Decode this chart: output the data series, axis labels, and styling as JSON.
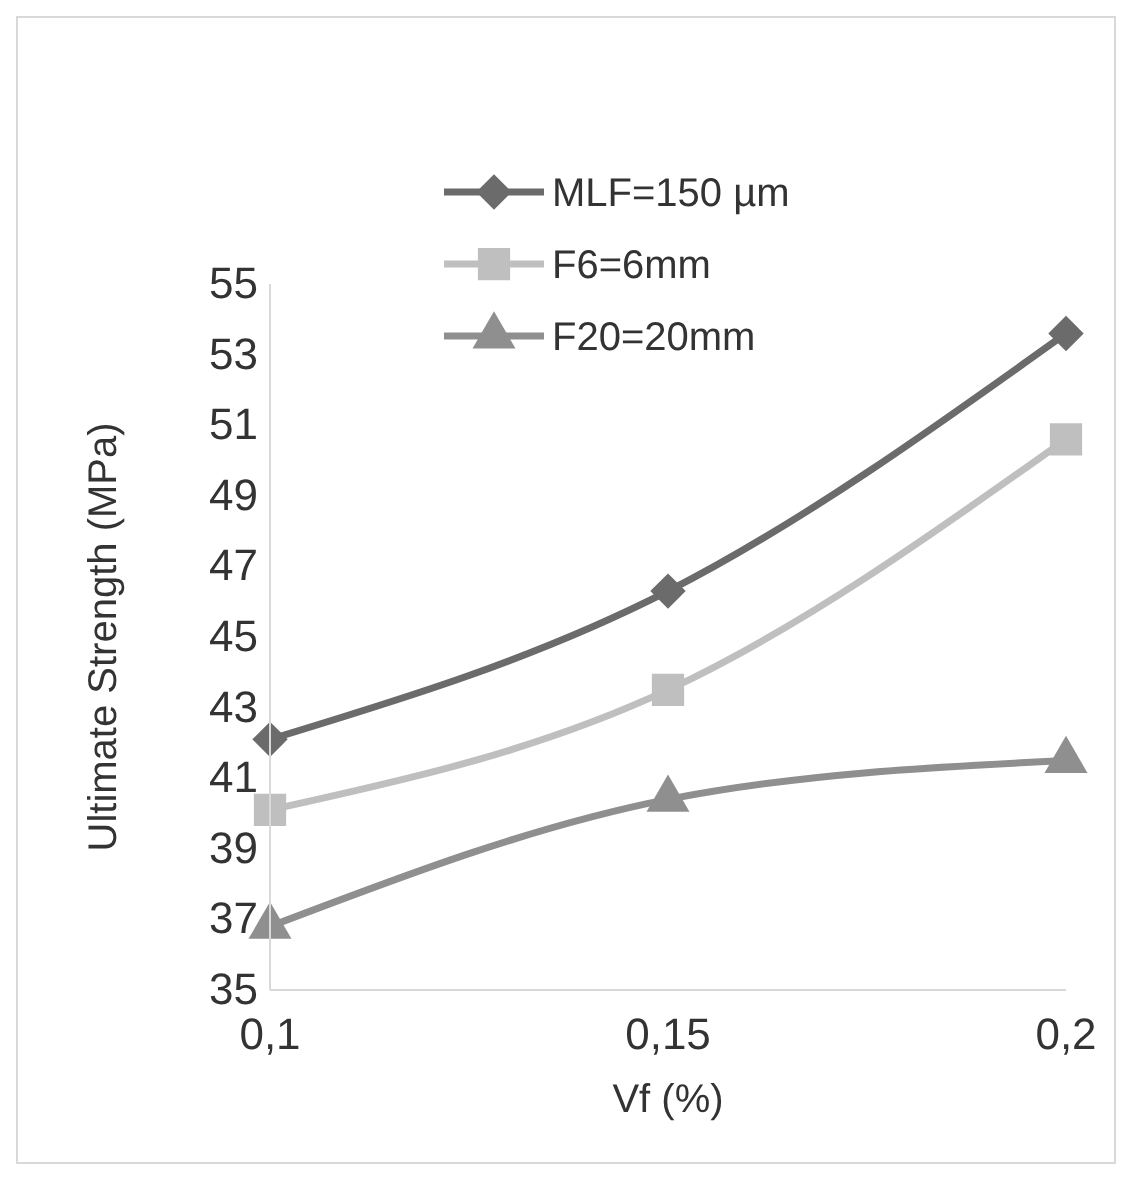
{
  "chart_data": {
    "type": "line",
    "xlabel": "Vf (%)",
    "ylabel": "Ultimate Strength (MPa)",
    "categories": [
      "0,1",
      "0,15",
      "0,2"
    ],
    "series": [
      {
        "name": "MLF=150 µm",
        "color": "#6b6b6b",
        "marker": "diamond",
        "values": [
          42.1,
          46.3,
          53.6
        ]
      },
      {
        "name": "F6=6mm",
        "color": "#bfbfbf",
        "marker": "square",
        "values": [
          40.1,
          43.5,
          50.6
        ]
      },
      {
        "name": "F20=20mm",
        "color": "#8f8f8f",
        "marker": "triangle",
        "values": [
          36.8,
          40.4,
          41.5
        ]
      }
    ],
    "ylim": [
      35,
      55
    ],
    "yticks": [
      35,
      37,
      39,
      41,
      43,
      45,
      47,
      49,
      51,
      53,
      55
    ],
    "grid": false,
    "legend": "top"
  }
}
